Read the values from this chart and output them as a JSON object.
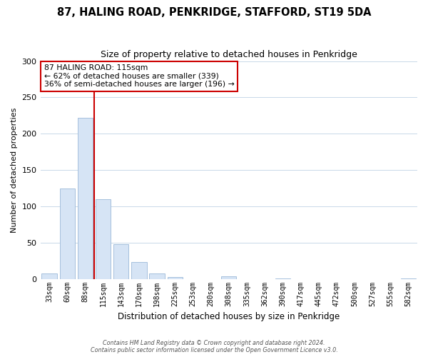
{
  "title": "87, HALING ROAD, PENKRIDGE, STAFFORD, ST19 5DA",
  "subtitle": "Size of property relative to detached houses in Penkridge",
  "xlabel": "Distribution of detached houses by size in Penkridge",
  "ylabel": "Number of detached properties",
  "bar_labels": [
    "33sqm",
    "60sqm",
    "88sqm",
    "115sqm",
    "143sqm",
    "170sqm",
    "198sqm",
    "225sqm",
    "253sqm",
    "280sqm",
    "308sqm",
    "335sqm",
    "362sqm",
    "390sqm",
    "417sqm",
    "445sqm",
    "472sqm",
    "500sqm",
    "527sqm",
    "555sqm",
    "582sqm"
  ],
  "bar_heights": [
    8,
    125,
    222,
    110,
    48,
    23,
    8,
    3,
    0,
    0,
    4,
    0,
    0,
    1,
    0,
    0,
    0,
    0,
    0,
    0,
    1
  ],
  "bar_color": "#d6e4f5",
  "bar_edge_color": "#9ab8d8",
  "vline_color": "#cc0000",
  "ylim": [
    0,
    300
  ],
  "yticks": [
    0,
    50,
    100,
    150,
    200,
    250,
    300
  ],
  "annotation_title": "87 HALING ROAD: 115sqm",
  "annotation_line1": "← 62% of detached houses are smaller (339)",
  "annotation_line2": "36% of semi-detached houses are larger (196) →",
  "annotation_box_color": "#ffffff",
  "annotation_box_edge_color": "#cc0000",
  "footer_line1": "Contains HM Land Registry data © Crown copyright and database right 2024.",
  "footer_line2": "Contains public sector information licensed under the Open Government Licence v3.0.",
  "background_color": "#ffffff",
  "grid_color": "#c8d8e8"
}
